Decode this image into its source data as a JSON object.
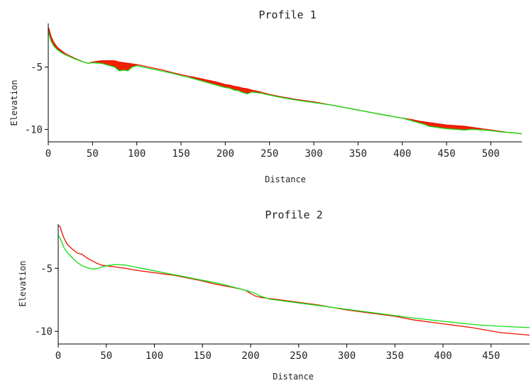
{
  "chart_data": [
    {
      "type": "area",
      "title": "Profile 1",
      "xlabel": "Distance",
      "ylabel": "Elevation",
      "xlim": [
        0,
        535
      ],
      "ylim": [
        -11,
        -1.5
      ],
      "xticks": [
        0,
        50,
        100,
        150,
        200,
        250,
        300,
        350,
        400,
        450,
        500
      ],
      "yticks": [
        -5,
        -10
      ],
      "fill_above_color": "#00dd00",
      "fill_below_color": "#ee2200",
      "series": [
        {
          "color": "#ee1100",
          "x": [
            0,
            1,
            3,
            6,
            10,
            15,
            20,
            30,
            40,
            45,
            50,
            60,
            70,
            75,
            80,
            85,
            90,
            95,
            100,
            110,
            120,
            130,
            140,
            150,
            160,
            170,
            180,
            190,
            200,
            205,
            210,
            215,
            220,
            225,
            230,
            240,
            250,
            260,
            280,
            300,
            320,
            350,
            380,
            400,
            410,
            420,
            425,
            430,
            435,
            440,
            450,
            460,
            470,
            480,
            490,
            500,
            510,
            520,
            530,
            535
          ],
          "y": [
            -1.8,
            -2.0,
            -2.5,
            -3.0,
            -3.4,
            -3.7,
            -3.95,
            -4.3,
            -4.6,
            -4.7,
            -4.6,
            -4.5,
            -4.5,
            -4.5,
            -4.6,
            -4.65,
            -4.7,
            -4.75,
            -4.8,
            -4.95,
            -5.1,
            -5.25,
            -5.45,
            -5.6,
            -5.75,
            -5.9,
            -6.05,
            -6.2,
            -6.4,
            -6.45,
            -6.55,
            -6.6,
            -6.7,
            -6.75,
            -6.85,
            -7.0,
            -7.2,
            -7.35,
            -7.6,
            -7.8,
            -8.05,
            -8.45,
            -8.85,
            -9.1,
            -9.2,
            -9.35,
            -9.4,
            -9.45,
            -9.5,
            -9.55,
            -9.65,
            -9.7,
            -9.75,
            -9.85,
            -9.95,
            -10.05,
            -10.15,
            -10.25,
            -10.3,
            -10.35
          ]
        },
        {
          "color": "#11dd11",
          "x": [
            0,
            1,
            3,
            6,
            10,
            15,
            20,
            30,
            40,
            45,
            50,
            60,
            70,
            75,
            80,
            85,
            90,
            95,
            100,
            110,
            120,
            130,
            140,
            150,
            160,
            170,
            180,
            190,
            200,
            205,
            210,
            215,
            220,
            225,
            230,
            240,
            250,
            260,
            280,
            300,
            320,
            350,
            380,
            400,
            410,
            420,
            425,
            430,
            435,
            440,
            450,
            460,
            470,
            480,
            490,
            500,
            510,
            520,
            530,
            535
          ],
          "y": [
            -2.1,
            -2.4,
            -2.9,
            -3.3,
            -3.6,
            -3.85,
            -4.05,
            -4.35,
            -4.6,
            -4.7,
            -4.65,
            -4.7,
            -4.9,
            -5.0,
            -5.3,
            -5.25,
            -5.3,
            -5.0,
            -4.9,
            -5.05,
            -5.2,
            -5.35,
            -5.5,
            -5.7,
            -5.85,
            -6.05,
            -6.25,
            -6.45,
            -6.65,
            -6.7,
            -6.85,
            -6.9,
            -7.05,
            -7.15,
            -7.0,
            -7.1,
            -7.25,
            -7.4,
            -7.65,
            -7.85,
            -8.05,
            -8.45,
            -8.85,
            -9.1,
            -9.3,
            -9.5,
            -9.6,
            -9.75,
            -9.8,
            -9.85,
            -9.95,
            -10.0,
            -10.05,
            -10.0,
            -10.05,
            -10.1,
            -10.2,
            -10.25,
            -10.3,
            -10.35
          ]
        }
      ]
    },
    {
      "type": "line",
      "title": "Profile 2",
      "xlabel": "Distance",
      "ylabel": "Elevation",
      "xlim": [
        0,
        490
      ],
      "ylim": [
        -11,
        -1.5
      ],
      "xticks": [
        0,
        50,
        100,
        150,
        200,
        250,
        300,
        350,
        400,
        450
      ],
      "yticks": [
        -5,
        -10
      ],
      "series": [
        {
          "color": "#ee1100",
          "x": [
            0,
            2,
            4,
            6,
            8,
            10,
            15,
            20,
            25,
            30,
            35,
            40,
            45,
            50,
            60,
            70,
            80,
            90,
            100,
            110,
            120,
            130,
            140,
            150,
            160,
            170,
            180,
            190,
            195,
            200,
            205,
            210,
            220,
            230,
            250,
            270,
            300,
            330,
            350,
            370,
            400,
            430,
            460,
            490
          ],
          "y": [
            -1.6,
            -1.7,
            -2.2,
            -2.6,
            -2.9,
            -3.15,
            -3.5,
            -3.8,
            -3.9,
            -4.2,
            -4.4,
            -4.6,
            -4.75,
            -4.8,
            -4.9,
            -5.0,
            -5.15,
            -5.25,
            -5.35,
            -5.45,
            -5.55,
            -5.7,
            -5.85,
            -6.0,
            -6.2,
            -6.35,
            -6.5,
            -6.65,
            -6.75,
            -7.0,
            -7.2,
            -7.3,
            -7.4,
            -7.5,
            -7.7,
            -7.9,
            -8.3,
            -8.6,
            -8.8,
            -9.1,
            -9.4,
            -9.7,
            -10.1,
            -10.3
          ]
        },
        {
          "color": "#11dd11",
          "x": [
            0,
            2,
            4,
            6,
            8,
            10,
            15,
            20,
            25,
            30,
            35,
            40,
            45,
            50,
            55,
            60,
            65,
            70,
            80,
            90,
            100,
            110,
            120,
            130,
            140,
            150,
            160,
            170,
            180,
            190,
            200,
            205,
            210,
            220,
            230,
            250,
            270,
            300,
            330,
            350,
            370,
            400,
            430,
            460,
            490
          ],
          "y": [
            -2.4,
            -2.6,
            -3.0,
            -3.35,
            -3.6,
            -3.8,
            -4.2,
            -4.55,
            -4.8,
            -4.95,
            -5.05,
            -5.05,
            -4.9,
            -4.8,
            -4.75,
            -4.7,
            -4.72,
            -4.75,
            -4.9,
            -5.05,
            -5.2,
            -5.35,
            -5.5,
            -5.65,
            -5.8,
            -5.95,
            -6.1,
            -6.25,
            -6.45,
            -6.65,
            -6.85,
            -7.0,
            -7.2,
            -7.45,
            -7.55,
            -7.75,
            -7.95,
            -8.25,
            -8.55,
            -8.75,
            -8.95,
            -9.2,
            -9.45,
            -9.6,
            -9.7
          ]
        }
      ]
    }
  ]
}
